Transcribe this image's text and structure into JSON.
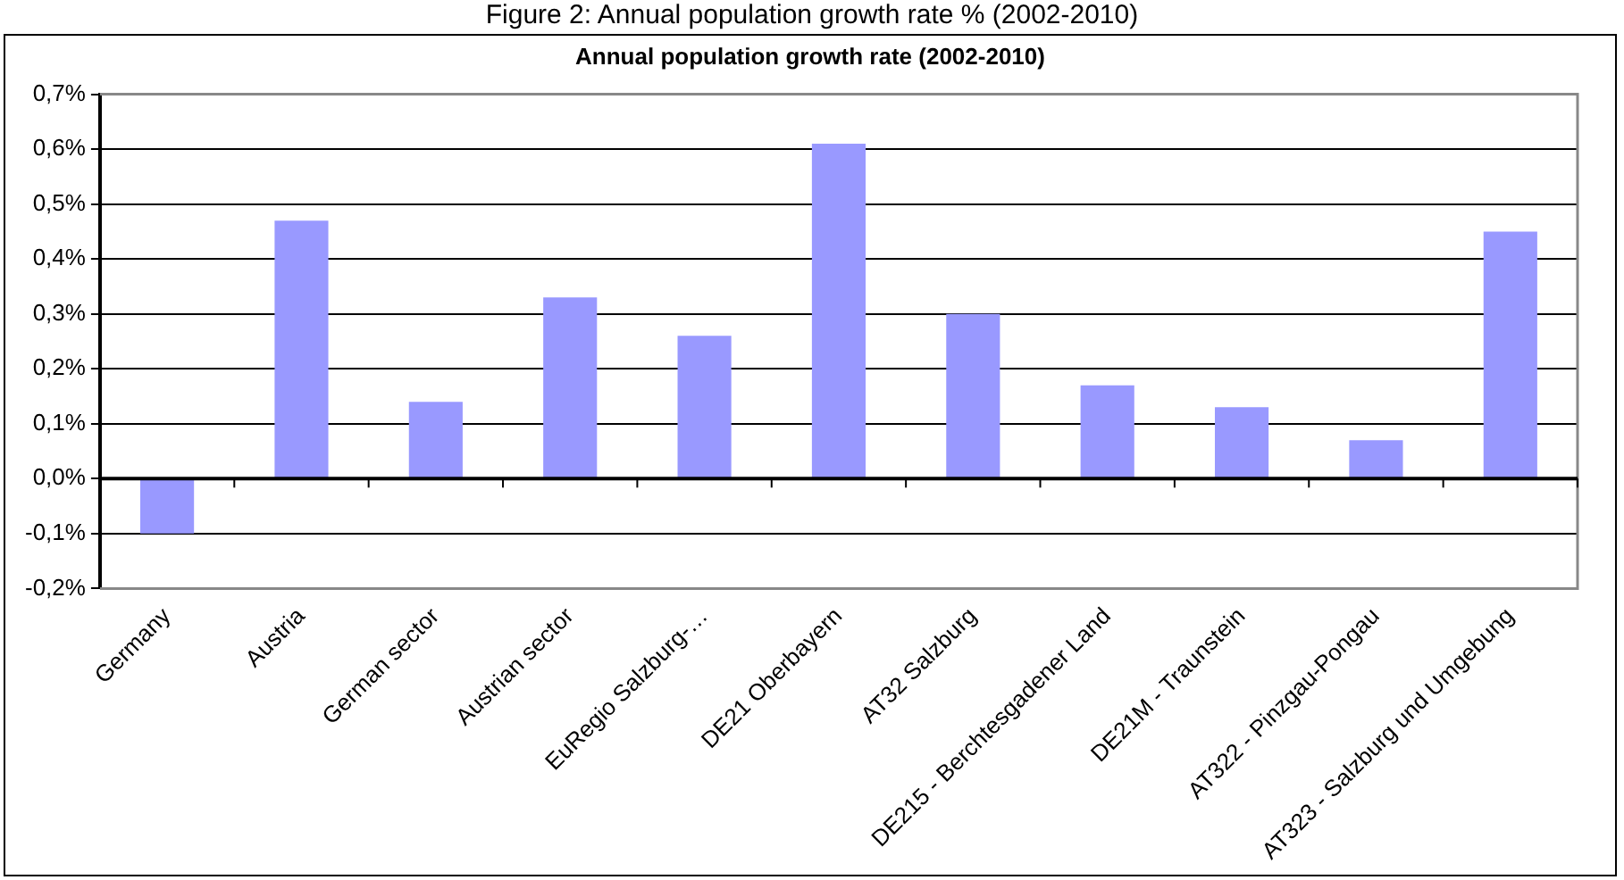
{
  "chart_data": {
    "type": "bar",
    "title": "Figure 2: Annual population growth rate % (2002-2010)",
    "subtitle": "Annual population growth rate (2002-2010)",
    "categories": [
      "Germany",
      "Austria",
      "German sector",
      "Austrian sector",
      "EuRegio Salzburg-…",
      "DE21 Oberbayern",
      "AT32 Salzburg",
      "DE215 - Berchtesgadener Land",
      "DE21M - Traunstein",
      "AT322 - Pinzgau-Pongau",
      "AT323 - Salzburg und Umgebung"
    ],
    "values": [
      -0.1,
      0.47,
      0.14,
      0.33,
      0.26,
      0.61,
      0.3,
      0.17,
      0.13,
      0.07,
      0.45
    ],
    "color": "#9999ff",
    "ylim": [
      -0.2,
      0.7
    ],
    "yticks": [
      {
        "value": -0.2,
        "label": "-0,2%"
      },
      {
        "value": -0.1,
        "label": "-0,1%"
      },
      {
        "value": 0,
        "label": "0,0%"
      },
      {
        "value": 0.1,
        "label": "0,1%"
      },
      {
        "value": 0.2,
        "label": "0,2%"
      },
      {
        "value": 0.3,
        "label": "0,3%"
      },
      {
        "value": 0.4,
        "label": "0,4%"
      },
      {
        "value": 0.5,
        "label": "0,5%"
      },
      {
        "value": 0.6,
        "label": "0,6%"
      },
      {
        "value": 0.7,
        "label": "0,7%"
      }
    ],
    "grid": "y",
    "legend": false
  }
}
